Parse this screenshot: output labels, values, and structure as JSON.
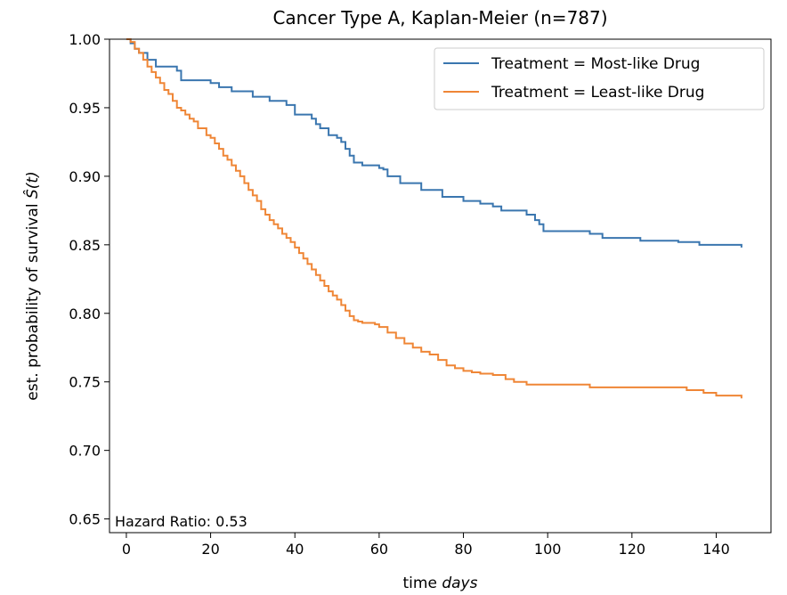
{
  "chart_data": {
    "type": "line",
    "title": "Cancer Type A, Kaplan-Meier (n=787)",
    "xlabel_prefix": "time ",
    "xlabel_italic": "days",
    "ylabel_prefix": "est. probability of survival ",
    "ylabel_italic": "Ŝ(t)",
    "xlim": [
      -4,
      153
    ],
    "ylim": [
      0.64,
      1.0
    ],
    "xticks": [
      0,
      20,
      40,
      60,
      80,
      100,
      120,
      140
    ],
    "xtick_labels": [
      "0",
      "20",
      "40",
      "60",
      "80",
      "100",
      "120",
      "140"
    ],
    "yticks": [
      0.65,
      0.7,
      0.75,
      0.8,
      0.85,
      0.9,
      0.95,
      1.0
    ],
    "ytick_labels": [
      "0.65",
      "0.70",
      "0.75",
      "0.80",
      "0.85",
      "0.90",
      "0.95",
      "1.00"
    ],
    "step": true,
    "grid": false,
    "legend_position": "upper right",
    "annotation": "Hazard Ratio: 0.53",
    "series": [
      {
        "name": "Treatment = Most-like Drug",
        "color": "#3a76af",
        "x": [
          0,
          1,
          2,
          3,
          4,
          5,
          7,
          8,
          12,
          13,
          16,
          20,
          22,
          23,
          25,
          29,
          30,
          31,
          34,
          36,
          38,
          40,
          44,
          45,
          46,
          47,
          48,
          50,
          51,
          52,
          53,
          54,
          56,
          60,
          61,
          62,
          65,
          70,
          75,
          80,
          84,
          87,
          89,
          94,
          95,
          97,
          98,
          99,
          106,
          110,
          112,
          113,
          115,
          122,
          125,
          131,
          134,
          136,
          139,
          140,
          145,
          146
        ],
        "y": [
          1.0,
          0.997,
          0.993,
          0.99,
          0.99,
          0.985,
          0.98,
          0.98,
          0.977,
          0.97,
          0.97,
          0.968,
          0.965,
          0.965,
          0.962,
          0.962,
          0.958,
          0.958,
          0.955,
          0.955,
          0.952,
          0.945,
          0.942,
          0.938,
          0.935,
          0.935,
          0.93,
          0.928,
          0.925,
          0.92,
          0.915,
          0.91,
          0.908,
          0.906,
          0.905,
          0.9,
          0.895,
          0.89,
          0.885,
          0.882,
          0.88,
          0.878,
          0.875,
          0.875,
          0.872,
          0.868,
          0.865,
          0.86,
          0.86,
          0.858,
          0.858,
          0.855,
          0.855,
          0.853,
          0.853,
          0.852,
          0.852,
          0.85,
          0.85,
          0.85,
          0.85,
          0.848
        ]
      },
      {
        "name": "Treatment = Least-like Drug",
        "color": "#ef8636",
        "x": [
          0,
          1,
          2,
          3,
          4,
          5,
          6,
          7,
          8,
          9,
          10,
          11,
          12,
          13,
          14,
          15,
          16,
          17,
          18,
          19,
          20,
          21,
          22,
          23,
          24,
          25,
          26,
          27,
          28,
          29,
          30,
          31,
          32,
          33,
          34,
          35,
          36,
          37,
          38,
          39,
          40,
          41,
          42,
          43,
          44,
          45,
          46,
          47,
          48,
          49,
          50,
          51,
          52,
          53,
          54,
          55,
          56,
          57,
          58,
          59,
          60,
          62,
          64,
          66,
          68,
          70,
          72,
          74,
          76,
          78,
          80,
          82,
          84,
          87,
          90,
          92,
          95,
          100,
          110,
          120,
          130,
          133,
          137,
          140,
          146
        ],
        "y": [
          1.0,
          0.998,
          0.993,
          0.99,
          0.985,
          0.98,
          0.976,
          0.972,
          0.968,
          0.963,
          0.96,
          0.955,
          0.95,
          0.948,
          0.945,
          0.942,
          0.94,
          0.935,
          0.935,
          0.93,
          0.928,
          0.924,
          0.92,
          0.915,
          0.912,
          0.908,
          0.904,
          0.9,
          0.895,
          0.89,
          0.886,
          0.882,
          0.876,
          0.872,
          0.868,
          0.865,
          0.862,
          0.858,
          0.855,
          0.852,
          0.848,
          0.844,
          0.84,
          0.836,
          0.832,
          0.828,
          0.824,
          0.82,
          0.816,
          0.813,
          0.81,
          0.806,
          0.802,
          0.798,
          0.795,
          0.794,
          0.793,
          0.793,
          0.793,
          0.792,
          0.79,
          0.786,
          0.782,
          0.778,
          0.775,
          0.772,
          0.77,
          0.766,
          0.762,
          0.76,
          0.758,
          0.757,
          0.756,
          0.755,
          0.752,
          0.75,
          0.748,
          0.748,
          0.746,
          0.746,
          0.746,
          0.744,
          0.742,
          0.74,
          0.738
        ]
      }
    ]
  }
}
